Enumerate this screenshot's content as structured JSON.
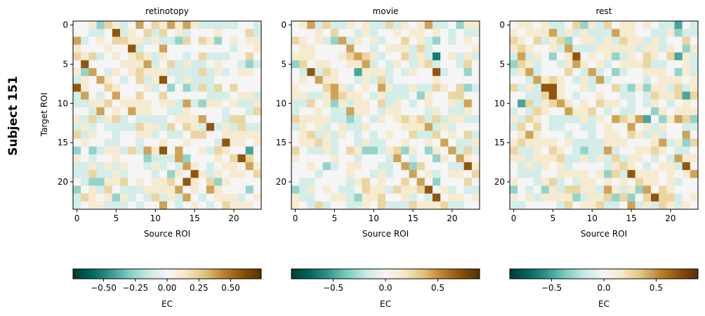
{
  "chart_data": {
    "type": "heatmap",
    "suptitle": "Subject 151",
    "ylabel": "Target ROI",
    "colormap": "BrBG_r",
    "encoding_note": "Matrix rows are strings; each char is a level: 0 = neutral, 1-4 = positive (brown) levels, a-d = negative (teal) levels. Each level is a fraction of the panel's vmax.",
    "level_fraction": {
      "0": 0.0,
      "1": 0.15,
      "2": 0.3,
      "3": 0.5,
      "4": 0.78,
      "a": -0.15,
      "b": -0.35,
      "c": -0.55,
      "d": -0.72
    },
    "panels": [
      {
        "title": "retinotopy",
        "xlabel": "Source ROI",
        "x_ticks": [
          "0",
          "5",
          "10",
          "15",
          "20"
        ],
        "y_ticks": [
          "0",
          "5",
          "10",
          "15",
          "20"
        ],
        "colorbar": {
          "label": "EC",
          "vmin": -0.74,
          "vmax": 0.74,
          "ticks": [
            -0.5,
            -0.25,
            0,
            0.25,
            0.5
          ],
          "tick_labels": [
            "−0.50",
            "−0.25",
            "0.00",
            "0.25",
            "0.50"
          ]
        },
        "matrix": [
          "001b21a030213131aaaaa00a",
          "00aa04a102a201a00010002a",
          "3a0102211a1aab2021b01011",
          "10001004a00300000000a001",
          "212a010121a100a02aaa0020",
          "0400001113a02a1aa0100aba",
          "1b30a1012111aaaa2a1a0110",
          "a10310a02a140a1aaa000000",
          "4100210001a0b0ba2a202000",
          "a30a0300200200000aaa011a",
          "aa11201111011a3ab1101aa1",
          "00a301031100aa10000a00a2",
          "1a2a12a0aaaa0111300a2200",
          "a1a0aaaa211a2021a4a1a2aa",
          "2a100a0011a0aa0220011111",
          "0100aa00a001001000a41101",
          "b0ba11a2a31403001a2100c0",
          "10a001000baaa3b000102420",
          "aa1a1a100a1a0a310a011031",
          "aa2aa1a000a0b1041a101102",
          "0abb11201011204102b10000",
          "b01a20aaa1111301031000b0",
          "a2101b1a0a2a1a30a0111a01",
          "a011aaa0a0030a010a021110"
        ]
      },
      {
        "title": "movie",
        "xlabel": "Source ROI",
        "x_ticks": [
          "0",
          "5",
          "10",
          "15",
          "20"
        ],
        "y_ticks": [
          "0",
          "5",
          "10",
          "15",
          "20"
        ],
        "colorbar": {
          "label": "EC",
          "vmin": -0.9,
          "vmax": 0.9,
          "ticks": [
            -0.5,
            0,
            0.5
          ],
          "tick_labels": [
            "−0.5",
            "0.0",
            "0.5"
          ]
        },
        "matrix": [
          "013a2aa101aa2a1013aa0b11",
          "00010200a1a001011010a0aa",
          "2101ab3a101a00201ab0a010",
          "0110000300a0111a2a000001",
          "11100012321a002a1ad01a1a",
          "b201100113a0a10a12a00a20",
          "0a4a2100c111a0a1004a00b0",
          "01031100a1a2a00000100000",
          "1000231a01031aa1aa2102ba",
          "11aa132110a1aaa0b1002200",
          "aa201b1a1102a10a01001a30",
          "a0010aa3110a11000a10aa10",
          "21111aaba0a101212a2a11aa",
          "a101a01aa100001113a1a000",
          "012a1a10a0a01002aa20102a",
          "01121a00a1aa001001030aa1",
          "20aa1a021bba12b10b103a2a",
          "10000100a000a30a00b10310",
          "0010ba01100aa03b2000aa41",
          "000a000100a1a00301a01102",
          "0aa0000a1201002030b00020",
          "ba1010aa0211a2112401a0aa",
          "1aa0011ab112001a0a401101",
          "10a2a00aa102aaa21112aa00"
        ]
      },
      {
        "title": "rest",
        "xlabel": "Source ROI",
        "x_ticks": [
          "0",
          "5",
          "10",
          "15",
          "20"
        ],
        "y_ticks": [
          "0",
          "5",
          "10",
          "15",
          "20"
        ],
        "colorbar": {
          "label": "EC",
          "vmin": -0.9,
          "vmax": 0.9,
          "ticks": [
            -0.5,
            0,
            0.5
          ],
          "tick_labels": [
            "−0.5",
            "0.0",
            "0.5"
          ]
        },
        "matrix": [
          "01101aa02b1a2011010aac0a",
          "101113a1a1aaa31100aa1baa",
          "2102a12b011a1a211a1a0020",
          "121001a3aaa11111a11a10b1",
          "a3a10b0140101ba102102c1a",
          "b21a00a13101a01112aa001a",
          "a13a00020a3a0ba001110b1a",
          "00a31210a1a3a0000a011101",
          "2a1a441001a002ab1b11a2a1",
          "00aa2410a00100aa0a2112c2",
          "0c2a12310102110a0a10a010",
          "a0a210031120a0aa00b10111",
          "1a210aaaa1a103213c0b132b",
          "a2020aa00aa0100301a100aa",
          "0131000a00a011021a1a0030",
          "12111101aaaa11100013a1b2",
          "2aa10210abaa3a0011210aa0",
          "11a1112aa1a1a2a110a0a311",
          "0a1a101a0000a1210a011a40",
          "0aaa00111101b2a411101013",
          "100a12a0a110101021101a00",
          "b0a0b1a2211a31a1b3021000",
          "101a1111ba112b2b02422a01",
          "aa0000a20112aa03a1a21a10"
        ]
      }
    ]
  }
}
